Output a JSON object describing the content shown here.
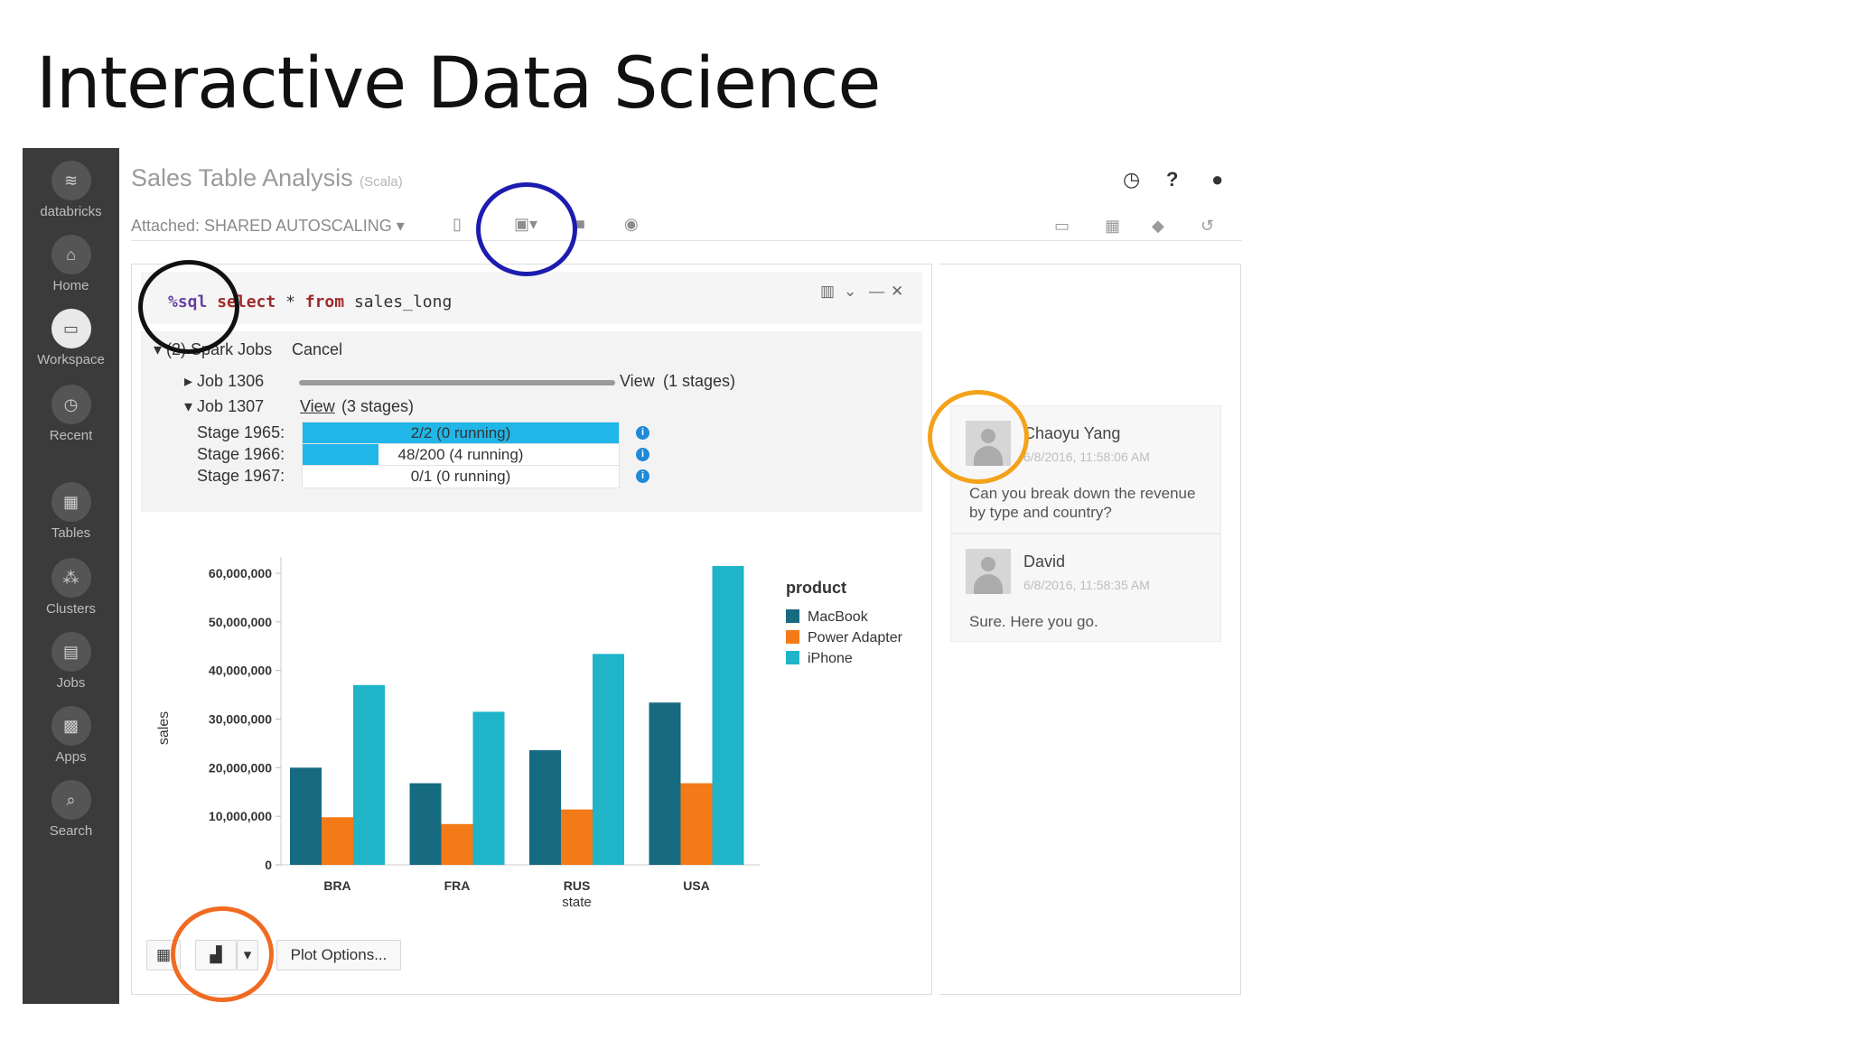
{
  "slide": {
    "title": "Interactive Data Science"
  },
  "sidebar": {
    "items": [
      {
        "label": "databricks",
        "icon": "layers-icon",
        "glyph": "≋"
      },
      {
        "label": "Home",
        "icon": "home-icon",
        "glyph": "⌂"
      },
      {
        "label": "Workspace",
        "icon": "folder-icon",
        "glyph": "▭"
      },
      {
        "label": "Recent",
        "icon": "clock-icon",
        "glyph": "◷"
      },
      {
        "label": "Tables",
        "icon": "table-icon",
        "glyph": "▦"
      },
      {
        "label": "Clusters",
        "icon": "cluster-icon",
        "glyph": "⁂"
      },
      {
        "label": "Jobs",
        "icon": "calendar-icon",
        "glyph": "▤"
      },
      {
        "label": "Apps",
        "icon": "grid-icon",
        "glyph": "▩"
      },
      {
        "label": "Search",
        "icon": "search-icon",
        "glyph": "⌕"
      }
    ]
  },
  "notebook": {
    "title": "Sales Table Analysis",
    "language": "(Scala)",
    "attached": "Attached: SHARED AUTOSCALING ▾"
  },
  "cell": {
    "code_magic": "%sql",
    "code_kw": "select",
    "code_star": " * ",
    "code_from": "from",
    "code_table": " sales_long"
  },
  "jobs": {
    "header": "(2) Spark Jobs",
    "cancel": "Cancel",
    "job1": "Job 1306",
    "job1_view": "View",
    "job1_stages": "(1 stages)",
    "job2": "Job 1307",
    "job2_view": "View",
    "job2_stages": "(3 stages)",
    "stages": [
      {
        "label": "Stage 1965:",
        "text": "2/2 (0 running)",
        "progress": 1.0
      },
      {
        "label": "Stage 1966:",
        "text": "48/200 (4 running)",
        "progress": 0.24
      },
      {
        "label": "Stage 1967:",
        "text": "0/1 (0 running)",
        "progress": 0.0
      }
    ]
  },
  "chart_data": {
    "type": "bar",
    "categories": [
      "BRA",
      "FRA",
      "RUS",
      "USA"
    ],
    "series": [
      {
        "name": "MacBook",
        "values": [
          20000000,
          16800000,
          23600000,
          33400000
        ],
        "color": "#176b80"
      },
      {
        "name": "Power Adapter",
        "values": [
          9800000,
          8400000,
          11400000,
          16800000
        ],
        "color": "#f47a17"
      },
      {
        "name": "iPhone",
        "values": [
          37000000,
          31500000,
          43400000,
          61500000
        ],
        "color": "#1fb4c8"
      }
    ],
    "ylabel": "sales",
    "xlabel": "state",
    "ylim": [
      0,
      60000000
    ],
    "yticks": [
      "0",
      "10,000,000",
      "20,000,000",
      "30,000,000",
      "40,000,000",
      "50,000,000",
      "60,000,000"
    ],
    "legend_title": "product",
    "legend_position": "right"
  },
  "footer": {
    "plot_options": "Plot Options..."
  },
  "comments": [
    {
      "name": "Chaoyu Yang",
      "time": "6/8/2016, 11:58:06 AM",
      "text": "Can you break down the revenue by type and country?"
    },
    {
      "name": "David",
      "time": "6/8/2016, 11:58:35 AM",
      "text": "Sure. Here you go."
    }
  ],
  "annotations": {
    "colors": [
      "#1c1cb0",
      "#111111",
      "#f4a21a",
      "#f06a22"
    ]
  }
}
